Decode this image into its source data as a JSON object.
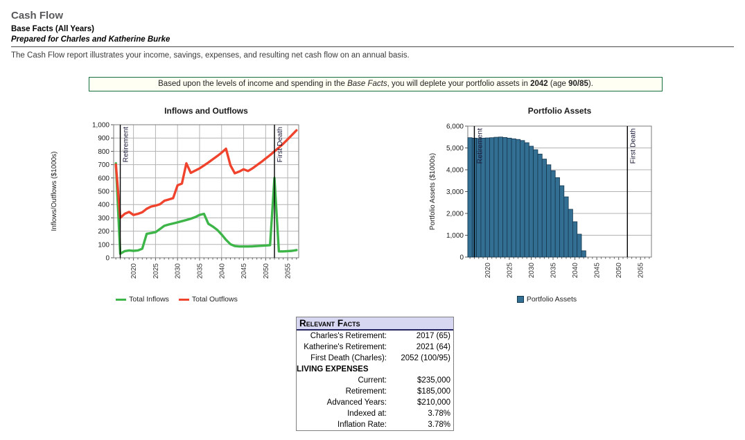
{
  "header": {
    "title": "Cash Flow",
    "subtitle": "Base Facts (All Years)",
    "prepared_for": "Prepared for Charles and Katherine Burke",
    "description": "The Cash Flow report illustrates your income, savings, expenses, and resulting net cash flow on an annual basis."
  },
  "notice": {
    "segments": [
      {
        "t": "Based upon the levels of income and spending in the ",
        "s": "n"
      },
      {
        "t": "Base Facts",
        "s": "i"
      },
      {
        "t": ", you will deplete your portfolio assets in ",
        "s": "n"
      },
      {
        "t": "2042",
        "s": "b"
      },
      {
        "t": " (age ",
        "s": "n"
      },
      {
        "t": "90/85",
        "s": "b"
      },
      {
        "t": ").",
        "s": "n"
      }
    ]
  },
  "colors": {
    "inflows_line": "#3db549",
    "outflows_line": "#f0432d",
    "portfolio_bar_fill": "#336e93",
    "portfolio_bar_border": "#16384f",
    "notice_border": "#156e3e",
    "notice_background": "#fffff4"
  },
  "chart_data": [
    {
      "id": "inflows-and-outflows",
      "type": "line",
      "title": "Inflows and Outflows",
      "ylabel": "Inflows/Outflows ($1000s)",
      "xlim": [
        2015.5,
        2057.5
      ],
      "ylim": [
        0,
        1000
      ],
      "ytick_step": 100,
      "xticks": [
        2020,
        2025,
        2030,
        2035,
        2040,
        2045,
        2050,
        2055
      ],
      "grid_x": true,
      "x": [
        2016,
        2017,
        2018,
        2019,
        2020,
        2021,
        2022,
        2023,
        2024,
        2025,
        2026,
        2027,
        2028,
        2029,
        2030,
        2031,
        2032,
        2033,
        2034,
        2035,
        2036,
        2037,
        2038,
        2039,
        2040,
        2041,
        2042,
        2043,
        2044,
        2045,
        2046,
        2047,
        2048,
        2049,
        2050,
        2051,
        2052,
        2053,
        2054,
        2055,
        2056,
        2057
      ],
      "series": [
        {
          "name": "Total Inflows",
          "color": "#3db549",
          "values": [
            710,
            30,
            50,
            55,
            52,
            55,
            68,
            180,
            186,
            192,
            216,
            240,
            250,
            258,
            266,
            275,
            284,
            294,
            305,
            322,
            330,
            255,
            235,
            210,
            175,
            135,
            102,
            88,
            85,
            85,
            85,
            86,
            88,
            90,
            92,
            95,
            600,
            48,
            48,
            50,
            52,
            58
          ]
        },
        {
          "name": "Total Outflows",
          "color": "#f0432d",
          "values": [
            700,
            300,
            330,
            345,
            322,
            330,
            342,
            368,
            385,
            392,
            402,
            428,
            438,
            448,
            545,
            558,
            710,
            638,
            655,
            672,
            694,
            716,
            740,
            764,
            790,
            820,
            695,
            635,
            648,
            665,
            652,
            672,
            696,
            720,
            746,
            772,
            800,
            828,
            858,
            890,
            924,
            958
          ]
        }
      ],
      "annotations": [
        {
          "label": "Retirement",
          "x": 2017
        },
        {
          "label": "First Death",
          "x": 2052
        }
      ]
    },
    {
      "id": "portfolio-assets",
      "type": "bar",
      "title": "Portfolio Assets",
      "ylabel": "Portfolio Assets ($1000s)",
      "xlim": [
        2015.5,
        2057.5
      ],
      "ylim": [
        0,
        6000
      ],
      "ytick_step": 1000,
      "xticks": [
        2020,
        2025,
        2030,
        2035,
        2040,
        2045,
        2050,
        2055
      ],
      "grid_x": false,
      "x": [
        2016,
        2017,
        2018,
        2019,
        2020,
        2021,
        2022,
        2023,
        2024,
        2025,
        2026,
        2027,
        2028,
        2029,
        2030,
        2031,
        2032,
        2033,
        2034,
        2035,
        2036,
        2037,
        2038,
        2039,
        2040,
        2041,
        2042
      ],
      "series": [
        {
          "name": "Portfolio Assets",
          "color": "#336e93",
          "border": "#16384f",
          "values": [
            5470,
            5450,
            5440,
            5450,
            5460,
            5470,
            5490,
            5500,
            5480,
            5450,
            5420,
            5390,
            5340,
            5240,
            5080,
            4920,
            4720,
            4490,
            4230,
            3960,
            3640,
            3270,
            2760,
            2190,
            1620,
            1050,
            290
          ]
        }
      ],
      "annotations": [
        {
          "label": "Retirement",
          "x": 2017
        },
        {
          "label": "First Death",
          "x": 2052
        }
      ]
    }
  ],
  "facts": {
    "title": "Relevant Facts",
    "rows": [
      {
        "label": "Charles's Retirement:",
        "value": "2017 (65)",
        "section": false
      },
      {
        "label": "Katherine's Retirement:",
        "value": "2021 (64)",
        "section": false
      },
      {
        "label": "First Death (Charles):",
        "value": "2052 (100/95)",
        "section": false
      },
      {
        "label": "LIVING EXPENSES",
        "value": "",
        "section": true
      },
      {
        "label": "Current:",
        "value": "$235,000",
        "section": false
      },
      {
        "label": "Retirement:",
        "value": "$185,000",
        "section": false
      },
      {
        "label": "Advanced Years:",
        "value": "$210,000",
        "section": false
      },
      {
        "label": "Indexed at:",
        "value": "3.78%",
        "section": false
      },
      {
        "label": "Inflation Rate:",
        "value": "3.78%",
        "section": false
      }
    ]
  }
}
